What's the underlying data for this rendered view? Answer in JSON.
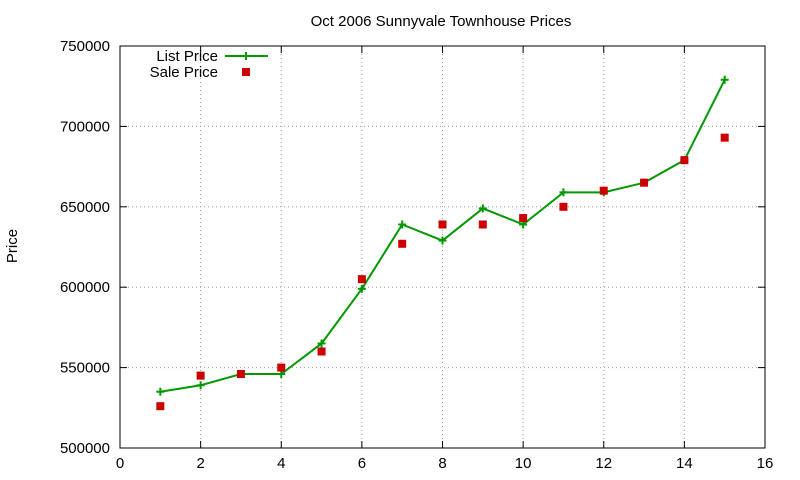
{
  "chart_data": {
    "type": "line",
    "title": "Oct 2006 Sunnyvale Townhouse Prices",
    "xlabel": "",
    "ylabel": "Price",
    "xlim": [
      0,
      16
    ],
    "ylim": [
      500000,
      750000
    ],
    "xticks": [
      0,
      2,
      4,
      6,
      8,
      10,
      12,
      14,
      16
    ],
    "yticks": [
      500000,
      550000,
      600000,
      650000,
      700000,
      750000
    ],
    "grid": true,
    "legend_position": "top-left",
    "series": [
      {
        "name": "List Price",
        "style": "linespoints",
        "marker": "plus",
        "color": "#009900",
        "x": [
          1,
          2,
          3,
          4,
          5,
          6,
          7,
          8,
          9,
          10,
          11,
          12,
          13,
          14,
          15
        ],
        "y": [
          535000,
          539000,
          546000,
          546000,
          565000,
          599000,
          639000,
          629000,
          649000,
          639000,
          659000,
          659000,
          665000,
          679000,
          729000
        ]
      },
      {
        "name": "Sale Price",
        "style": "points",
        "marker": "square",
        "color": "#cc0000",
        "x": [
          1,
          2,
          3,
          4,
          5,
          6,
          7,
          8,
          9,
          10,
          11,
          12,
          13,
          14,
          15
        ],
        "y": [
          526000,
          545000,
          546000,
          550000,
          560000,
          605000,
          627000,
          639000,
          639000,
          643000,
          650000,
          660000,
          665000,
          679000,
          693000
        ]
      }
    ]
  }
}
